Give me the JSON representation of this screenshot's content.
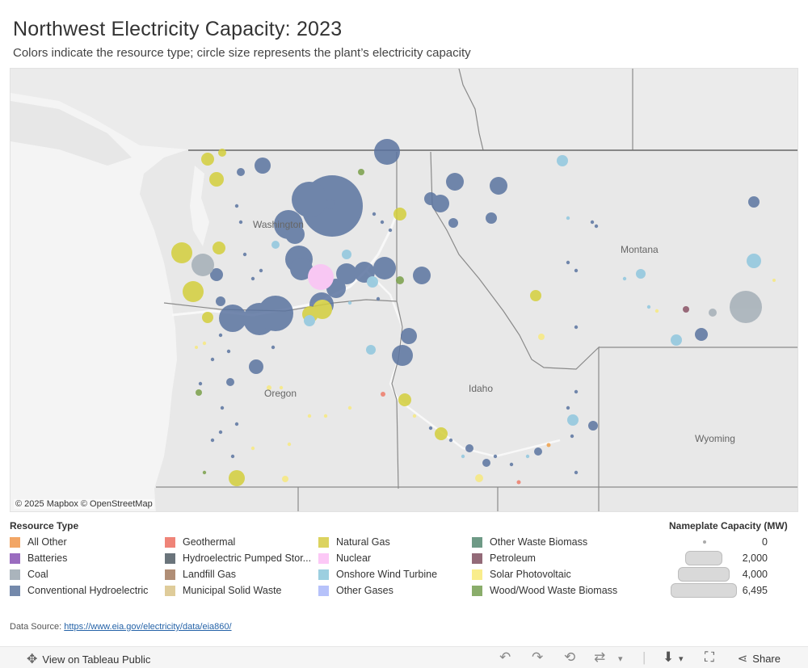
{
  "header": {
    "title": "Northwest Electricity Capacity: 2023",
    "subtitle": "Colors indicate the resource type; circle size represents the plant’s electricity capacity"
  },
  "map": {
    "state_labels": [
      "Washington",
      "Oregon",
      "Idaho",
      "Montana",
      "Wyoming"
    ],
    "attribution": "© 2025 Mapbox  © OpenStreetMap",
    "colors": {
      "hydro": "#5b74a0",
      "gas": "#d4cf3c",
      "wind": "#8fc7de",
      "coal": "#a5afb7",
      "nuclear": "#fbc2f5",
      "solar": "#f7e97f",
      "wood": "#7aa04a",
      "geothermal": "#ee7c6a",
      "petroleum": "#8b5366",
      "allother": "#f0a14b"
    }
  },
  "legend": {
    "title": "Resource Type",
    "items": [
      {
        "label": "All Other",
        "color": "#f2a666"
      },
      {
        "label": "Batteries",
        "color": "#9a6cbf"
      },
      {
        "label": "Coal",
        "color": "#aab4bc"
      },
      {
        "label": "Conventional Hydroelectric",
        "color": "#7489ab"
      },
      {
        "label": "Geothermal",
        "color": "#ef8478"
      },
      {
        "label": "Hydroelectric Pumped Stor...",
        "color": "#6a747b"
      },
      {
        "label": "Landfill Gas",
        "color": "#b08e76"
      },
      {
        "label": "Municipal Solid Waste",
        "color": "#dfcc9a"
      },
      {
        "label": "Natural Gas",
        "color": "#dcd35f"
      },
      {
        "label": "Nuclear",
        "color": "#fcc8f6"
      },
      {
        "label": "Onshore Wind Turbine",
        "color": "#9ccfe0"
      },
      {
        "label": "Other Gases",
        "color": "#b6c2fa"
      },
      {
        "label": "Other Waste Biomass",
        "color": "#6e9a86"
      },
      {
        "label": "Petroleum",
        "color": "#936a78"
      },
      {
        "label": "Solar Photovoltaic",
        "color": "#f9ed8c"
      },
      {
        "label": "Wood/Wood Waste Biomass",
        "color": "#8aad6b"
      }
    ]
  },
  "size_legend": {
    "title": "Nameplate Capacity (MW)",
    "values": [
      "0",
      "2,000",
      "4,000",
      "6,495"
    ]
  },
  "footer": {
    "source_label": "Data Source: ",
    "source_link": "https://www.eia.gov/electricity/data/eia860/"
  },
  "toolbar": {
    "view_label": "View on Tableau Public",
    "share_label": "Share"
  }
}
